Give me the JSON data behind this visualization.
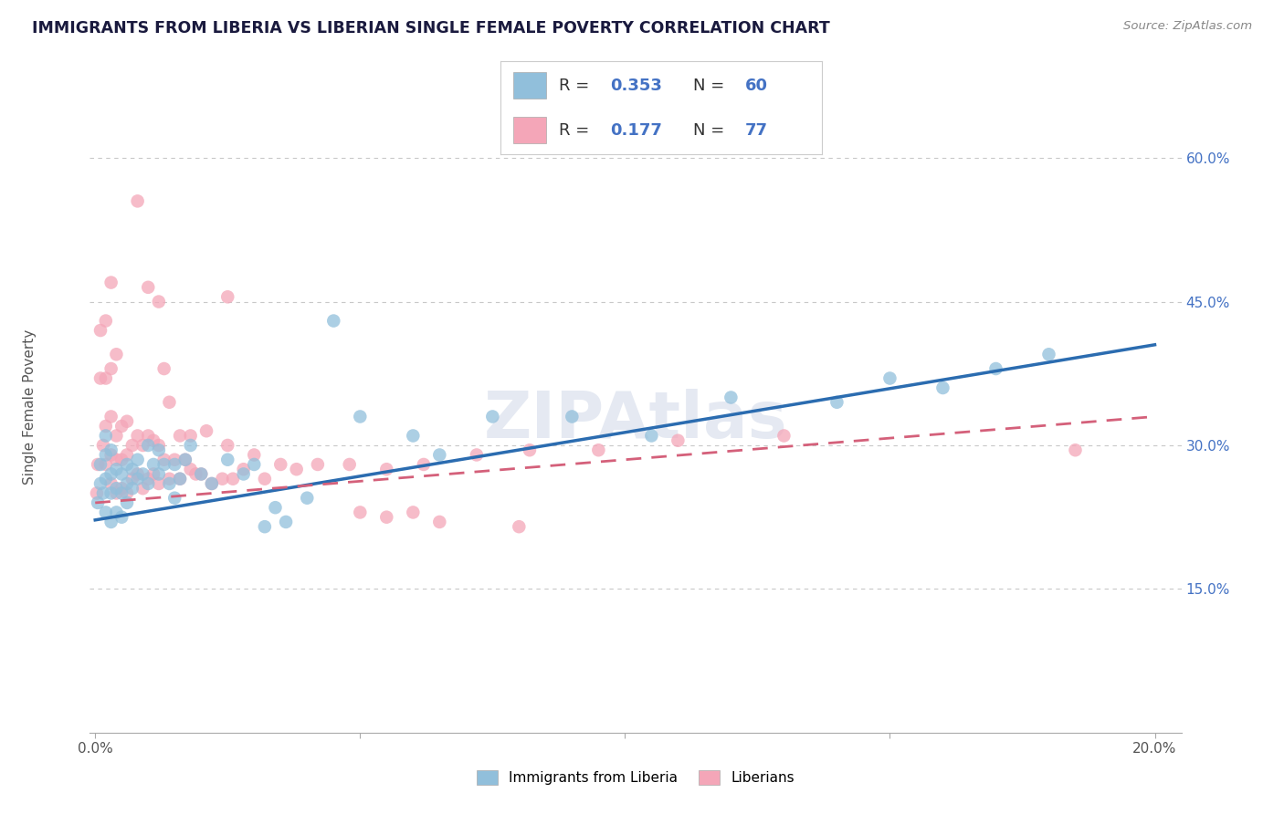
{
  "title": "IMMIGRANTS FROM LIBERIA VS LIBERIAN SINGLE FEMALE POVERTY CORRELATION CHART",
  "source": "Source: ZipAtlas.com",
  "ylabel": "Single Female Poverty",
  "y_tick_vals_right": [
    0.15,
    0.3,
    0.45,
    0.6
  ],
  "y_tick_labels_right": [
    "15.0%",
    "30.0%",
    "45.0%",
    "60.0%"
  ],
  "xlim_min": -0.001,
  "xlim_max": 0.205,
  "ylim_min": 0.0,
  "ylim_max": 0.68,
  "blue_R": 0.353,
  "blue_N": 60,
  "pink_R": 0.177,
  "pink_N": 77,
  "blue_color": "#91bfdb",
  "pink_color": "#f4a6b8",
  "blue_line_color": "#2b6cb0",
  "pink_line_color": "#d4607a",
  "title_color": "#1a1a3e",
  "source_color": "#888888",
  "legend_text_color": "#4472c4",
  "watermark": "ZIPAtlas",
  "legend_blue_label": "Immigrants from Liberia",
  "legend_pink_label": "Liberians",
  "blue_line_x0": 0.0,
  "blue_line_y0": 0.222,
  "blue_line_x1": 0.2,
  "blue_line_y1": 0.405,
  "pink_line_x0": 0.0,
  "pink_line_y0": 0.24,
  "pink_line_x1": 0.2,
  "pink_line_y1": 0.33,
  "blue_scatter_x": [
    0.0005,
    0.001,
    0.001,
    0.0015,
    0.002,
    0.002,
    0.002,
    0.002,
    0.003,
    0.003,
    0.003,
    0.003,
    0.004,
    0.004,
    0.004,
    0.005,
    0.005,
    0.005,
    0.006,
    0.006,
    0.006,
    0.007,
    0.007,
    0.008,
    0.008,
    0.009,
    0.01,
    0.01,
    0.011,
    0.012,
    0.012,
    0.013,
    0.014,
    0.015,
    0.015,
    0.016,
    0.017,
    0.018,
    0.02,
    0.022,
    0.025,
    0.028,
    0.03,
    0.032,
    0.034,
    0.036,
    0.04,
    0.045,
    0.05,
    0.06,
    0.065,
    0.075,
    0.09,
    0.105,
    0.12,
    0.14,
    0.15,
    0.16,
    0.17,
    0.18
  ],
  "blue_scatter_y": [
    0.24,
    0.26,
    0.28,
    0.25,
    0.23,
    0.265,
    0.29,
    0.31,
    0.22,
    0.25,
    0.27,
    0.295,
    0.23,
    0.255,
    0.275,
    0.225,
    0.25,
    0.27,
    0.24,
    0.26,
    0.28,
    0.255,
    0.275,
    0.265,
    0.285,
    0.27,
    0.26,
    0.3,
    0.28,
    0.27,
    0.295,
    0.28,
    0.26,
    0.245,
    0.28,
    0.265,
    0.285,
    0.3,
    0.27,
    0.26,
    0.285,
    0.27,
    0.28,
    0.215,
    0.235,
    0.22,
    0.245,
    0.43,
    0.33,
    0.31,
    0.29,
    0.33,
    0.33,
    0.31,
    0.35,
    0.345,
    0.37,
    0.36,
    0.38,
    0.395
  ],
  "pink_scatter_x": [
    0.0003,
    0.0005,
    0.001,
    0.001,
    0.0015,
    0.002,
    0.002,
    0.002,
    0.002,
    0.003,
    0.003,
    0.003,
    0.003,
    0.003,
    0.004,
    0.004,
    0.004,
    0.004,
    0.005,
    0.005,
    0.005,
    0.006,
    0.006,
    0.006,
    0.007,
    0.007,
    0.008,
    0.008,
    0.009,
    0.009,
    0.01,
    0.01,
    0.011,
    0.011,
    0.012,
    0.012,
    0.013,
    0.014,
    0.015,
    0.016,
    0.016,
    0.017,
    0.018,
    0.018,
    0.019,
    0.02,
    0.021,
    0.022,
    0.024,
    0.025,
    0.026,
    0.028,
    0.03,
    0.032,
    0.035,
    0.038,
    0.042,
    0.048,
    0.055,
    0.062,
    0.072,
    0.082,
    0.095,
    0.11,
    0.13,
    0.025,
    0.008,
    0.01,
    0.012,
    0.013,
    0.014,
    0.05,
    0.055,
    0.06,
    0.065,
    0.08,
    0.185
  ],
  "pink_scatter_y": [
    0.25,
    0.28,
    0.37,
    0.42,
    0.3,
    0.28,
    0.32,
    0.37,
    0.43,
    0.26,
    0.29,
    0.33,
    0.38,
    0.47,
    0.25,
    0.285,
    0.31,
    0.395,
    0.255,
    0.285,
    0.32,
    0.25,
    0.29,
    0.325,
    0.265,
    0.3,
    0.27,
    0.31,
    0.255,
    0.3,
    0.265,
    0.31,
    0.27,
    0.305,
    0.26,
    0.3,
    0.285,
    0.265,
    0.285,
    0.265,
    0.31,
    0.285,
    0.275,
    0.31,
    0.27,
    0.27,
    0.315,
    0.26,
    0.265,
    0.3,
    0.265,
    0.275,
    0.29,
    0.265,
    0.28,
    0.275,
    0.28,
    0.28,
    0.275,
    0.28,
    0.29,
    0.295,
    0.295,
    0.305,
    0.31,
    0.455,
    0.555,
    0.465,
    0.45,
    0.38,
    0.345,
    0.23,
    0.225,
    0.23,
    0.22,
    0.215,
    0.295
  ],
  "background_color": "#ffffff",
  "grid_color": "#c8c8c8"
}
